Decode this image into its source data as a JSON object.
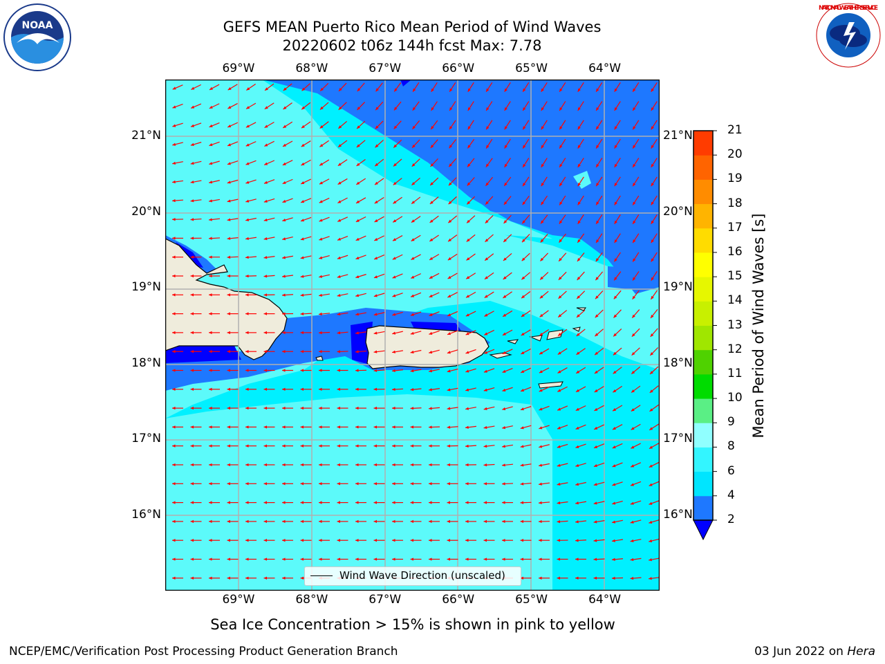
{
  "title_line1": "GEFS MEAN Puerto Rico Mean Period of Wind Waves",
  "title_line2": "20220602 t06z 144h fcst   Max: 7.78",
  "subtitle": "Sea Ice Concentration > 15% is shown in pink to yellow",
  "footer_left": "NCEP/EMC/Verification Post Processing Product Generation Branch",
  "footer_right_text": "03 Jun 2022 on ",
  "footer_right_host": "Hera",
  "legend_label": "Wind Wave Direction (unscaled)",
  "colorbar": {
    "label": "Mean Period of Wind Waves [s]",
    "ticks": [
      "2",
      "4",
      "6",
      "8",
      "9",
      "10",
      "11",
      "12",
      "13",
      "14",
      "15",
      "16",
      "17",
      "18",
      "19",
      "20",
      "21"
    ],
    "colors": [
      "#1e78ff",
      "#00e5ff",
      "#33f5ff",
      "#90ffff",
      "#5aef85",
      "#00dc00",
      "#4fd200",
      "#a0e600",
      "#c8f000",
      "#e6f700",
      "#ffff00",
      "#ffdc00",
      "#ffb400",
      "#ff8c00",
      "#ff6400",
      "#ff3c00",
      "#ff0000"
    ],
    "under_color": "#0000ff"
  },
  "map": {
    "lon_labels": [
      "69°W",
      "68°W",
      "67°W",
      "66°W",
      "65°W",
      "64°W"
    ],
    "lat_labels": [
      "21°N",
      "20°N",
      "19°N",
      "18°N",
      "17°N",
      "16°N"
    ],
    "lon_values": [
      -69,
      -68,
      -67,
      -66,
      -65,
      -64
    ],
    "lat_values": [
      21,
      20,
      19,
      18,
      17,
      16
    ],
    "extent": {
      "lon_min": -70.0,
      "lon_max": -63.25,
      "lat_min": 15.0,
      "lat_max": 21.75
    },
    "colors": {
      "ocean_light": "#5cfafa",
      "ocean_mid": "#00f0ff",
      "ocean_deep": "#1e78ff",
      "ocean_deepest": "#0000ff",
      "land": "#efecdc",
      "arrow": "#ff0000",
      "grid": "#b0b0b0"
    }
  },
  "logos": {
    "noaa": "NOAA",
    "nws_text": "NATIONAL WEATHER SERVICE"
  }
}
